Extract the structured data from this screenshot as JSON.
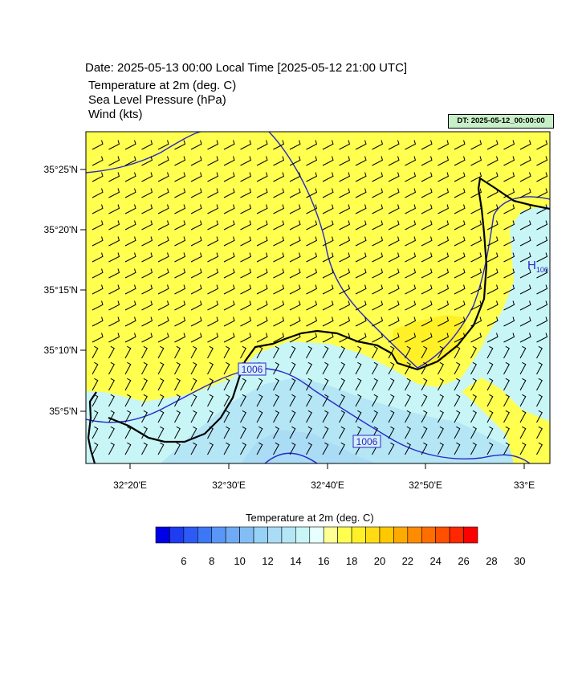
{
  "header": {
    "date_line": "Date: 2025-05-13  00:00 Local Time [2025-05-12  21:00 UTC]",
    "field_1": "Temperature at 2m   (deg. C)",
    "field_2": "Sea Level Pressure   (hPa)",
    "field_3": "Wind   (kts)"
  },
  "dt_label": "DT: 2025-05-12_00:00:00",
  "map": {
    "lat_ticks": [
      "35°25'N",
      "35°20'N",
      "35°15'N",
      "35°10'N",
      "35°5'N"
    ],
    "lon_ticks": [
      "32°20'E",
      "32°30'E",
      "32°40'E",
      "32°50'E",
      "33°E"
    ],
    "contour_labels": [
      "1006",
      "1006"
    ],
    "high_label": "H",
    "high_sub": "100"
  },
  "colorbar": {
    "title": "Temperature at 2m  (deg. C)",
    "tick_labels": [
      "6",
      "8",
      "10",
      "12",
      "14",
      "16",
      "18",
      "20",
      "22",
      "24",
      "26",
      "28",
      "30"
    ],
    "colors": [
      "#0000e6",
      "#1e3cf0",
      "#2d5af5",
      "#3c78f5",
      "#5a96f5",
      "#6eaaf5",
      "#82bef5",
      "#96d2f5",
      "#aadcf5",
      "#b4e6f5",
      "#c8f5f5",
      "#e6ffff",
      "#ffff96",
      "#ffff50",
      "#fff028",
      "#ffdc14",
      "#ffc800",
      "#ffaa00",
      "#ff8c00",
      "#ff6e00",
      "#ff5000",
      "#ff2800",
      "#ff0000"
    ]
  }
}
